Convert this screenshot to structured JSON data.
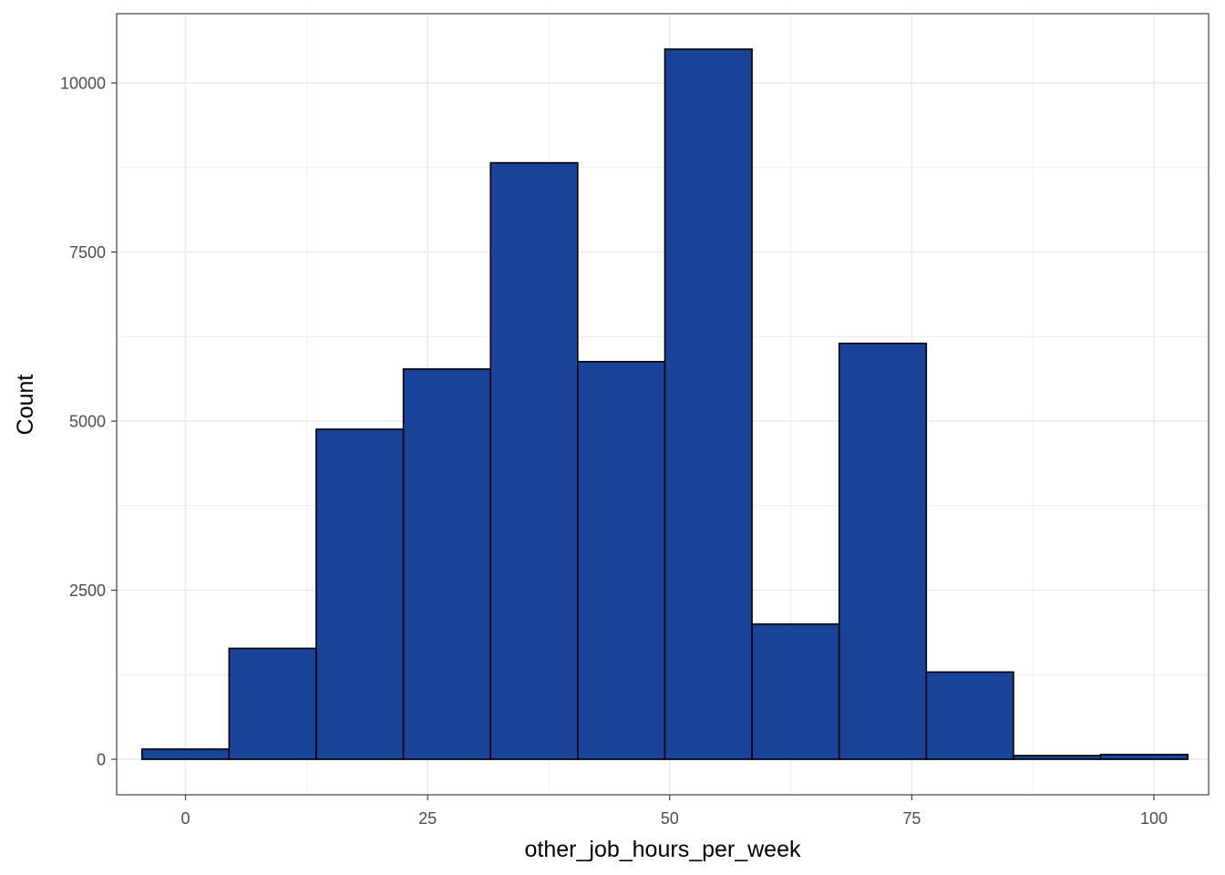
{
  "chart_data": {
    "type": "bar",
    "subtype": "histogram",
    "title": "",
    "xlabel": "other_job_hours_per_week",
    "ylabel": "Count",
    "xlim": [
      -7.11,
      105.65
    ],
    "ylim": [
      -525,
      11025
    ],
    "x_ticks": [
      0,
      25,
      50,
      75,
      100
    ],
    "x_tick_labels": [
      "0",
      "25",
      "50",
      "75",
      "100"
    ],
    "y_ticks": [
      0,
      2500,
      5000,
      7500,
      10000
    ],
    "y_tick_labels": [
      "0",
      "2500",
      "5000",
      "7500",
      "10000"
    ],
    "grid": true,
    "bins": [
      {
        "x0": -4.5,
        "x1": 4.5,
        "count": 150
      },
      {
        "x0": 4.5,
        "x1": 13.5,
        "count": 1640
      },
      {
        "x0": 13.5,
        "x1": 22.5,
        "count": 4880
      },
      {
        "x0": 22.5,
        "x1": 31.5,
        "count": 5770
      },
      {
        "x0": 31.5,
        "x1": 40.5,
        "count": 8820
      },
      {
        "x0": 40.5,
        "x1": 49.5,
        "count": 5880
      },
      {
        "x0": 49.5,
        "x1": 58.5,
        "count": 10500
      },
      {
        "x0": 58.5,
        "x1": 67.5,
        "count": 2000
      },
      {
        "x0": 67.5,
        "x1": 76.5,
        "count": 6150
      },
      {
        "x0": 76.5,
        "x1": 85.5,
        "count": 1290
      },
      {
        "x0": 85.5,
        "x1": 94.5,
        "count": 55
      },
      {
        "x0": 94.5,
        "x1": 103.5,
        "count": 70
      }
    ],
    "bar_fill": "#1a4499",
    "bar_stroke": "#000000",
    "panel_border": "#333333",
    "grid_color": "#ebebeb",
    "background": "#ffffff"
  }
}
